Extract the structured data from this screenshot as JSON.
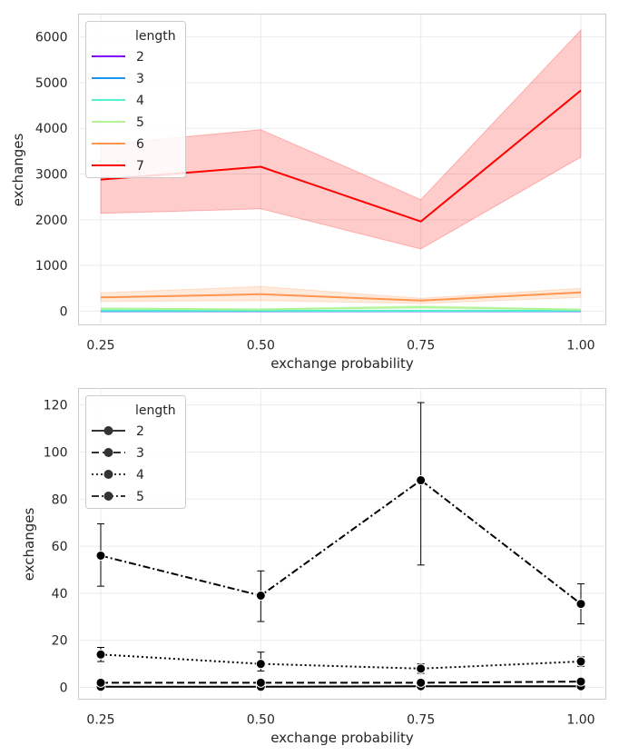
{
  "colors": {
    "len2": "#8000ff",
    "len3": "#1996f3",
    "len4": "#4df3ce",
    "len5": "#b2f396",
    "len6": "#ff964f",
    "len7": "#ff0000",
    "black": "#000000",
    "grid": "#ebebeb",
    "frame": "#cccccc"
  },
  "chart_data": [
    {
      "type": "line",
      "xlabel": "exchange probability",
      "ylabel": "exchanges",
      "x": [
        0.25,
        0.5,
        0.75,
        1.0
      ],
      "x_ticks": [
        "0.25",
        "0.50",
        "0.75",
        "1.00"
      ],
      "y_ticks": [
        "0",
        "1000",
        "2000",
        "3000",
        "4000",
        "5000",
        "6000"
      ],
      "ylim": [
        -300,
        6500
      ],
      "grid": true,
      "legend": {
        "title": "length",
        "placement": "top-left",
        "entries": [
          "2",
          "3",
          "4",
          "5",
          "6",
          "7"
        ]
      },
      "series": [
        {
          "name": "2",
          "values": [
            0.3,
            0.3,
            0.5,
            0.5
          ],
          "ci_low": [
            0,
            0,
            0,
            0
          ],
          "ci_high": [
            1,
            1,
            1,
            1
          ],
          "color": "#8000ff"
        },
        {
          "name": "3",
          "values": [
            2,
            2,
            2,
            2.5
          ],
          "ci_low": [
            1,
            1,
            1,
            1.5
          ],
          "ci_high": [
            3,
            3,
            3,
            3.5
          ],
          "color": "#1996f3"
        },
        {
          "name": "4",
          "values": [
            14,
            10,
            8,
            11
          ],
          "ci_low": [
            11,
            7,
            6,
            9
          ],
          "ci_high": [
            17,
            15,
            10,
            13
          ],
          "color": "#4df3ce"
        },
        {
          "name": "5",
          "values": [
            56,
            39,
            88,
            35
          ],
          "ci_low": [
            43,
            28,
            52,
            27
          ],
          "ci_high": [
            70,
            50,
            121,
            44
          ],
          "color": "#b2f396"
        },
        {
          "name": "6",
          "values": [
            300,
            370,
            230,
            410
          ],
          "ci_low": [
            210,
            230,
            170,
            300
          ],
          "ci_high": [
            400,
            540,
            280,
            500
          ],
          "color": "#ff964f"
        },
        {
          "name": "7",
          "values": [
            2880,
            3160,
            1960,
            4830
          ],
          "ci_low": [
            2140,
            2240,
            1360,
            3370
          ],
          "ci_high": [
            3640,
            3970,
            2440,
            6150
          ],
          "color": "#ff0000"
        }
      ]
    },
    {
      "type": "line",
      "xlabel": "exchange probability",
      "ylabel": "exchanges",
      "x": [
        0.25,
        0.5,
        0.75,
        1.0
      ],
      "x_ticks": [
        "0.25",
        "0.50",
        "0.75",
        "1.00"
      ],
      "y_ticks": [
        "0",
        "20",
        "40",
        "60",
        "80",
        "100",
        "120"
      ],
      "ylim": [
        -5,
        127
      ],
      "grid": true,
      "legend": {
        "title": "length",
        "placement": "top-left",
        "entries": [
          "2",
          "3",
          "4",
          "5"
        ]
      },
      "series": [
        {
          "name": "2",
          "values": [
            0.3,
            0.3,
            0.5,
            0.5
          ],
          "err_low": [
            0,
            0,
            0,
            0
          ],
          "err_high": [
            1,
            1,
            1,
            1
          ],
          "dash": "solid",
          "color": "#000000"
        },
        {
          "name": "3",
          "values": [
            2,
            2,
            2,
            2.5
          ],
          "err_low": [
            1,
            1,
            1,
            1.5
          ],
          "err_high": [
            3,
            3,
            3,
            3.5
          ],
          "dash": "dashed",
          "color": "#000000"
        },
        {
          "name": "4",
          "values": [
            14,
            10,
            8,
            11
          ],
          "err_low": [
            11,
            7,
            6,
            9
          ],
          "err_high": [
            17,
            15,
            10,
            13
          ],
          "dash": "dotted",
          "color": "#000000"
        },
        {
          "name": "5",
          "values": [
            56,
            39,
            88,
            35.5
          ],
          "err_low": [
            43,
            28,
            52,
            27
          ],
          "err_high": [
            69.5,
            49.5,
            121,
            44
          ],
          "dash": "dashdot",
          "color": "#000000"
        }
      ]
    }
  ]
}
